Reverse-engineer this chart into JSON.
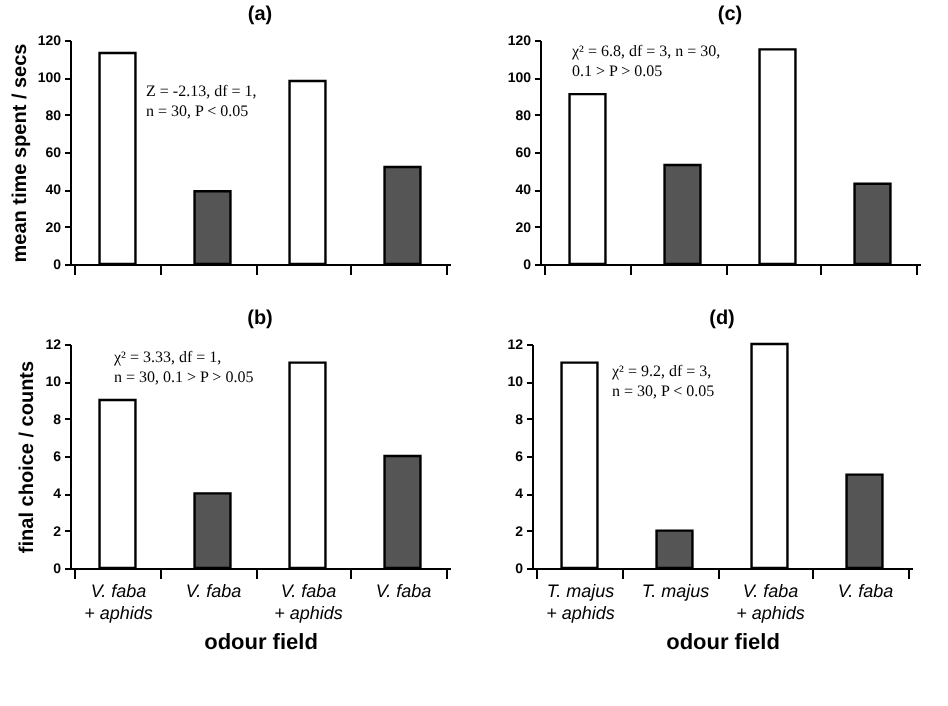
{
  "chart_data": [
    {
      "type": "bar",
      "title": "(a)",
      "ylabel": "mean time spent / secs",
      "categories": [
        null,
        null,
        null,
        null
      ],
      "values": [
        113,
        39,
        98,
        52
      ],
      "colors": [
        "#ffffff",
        "#555555",
        "#ffffff",
        "#555555"
      ],
      "ylim": [
        0,
        120
      ],
      "yticks": [
        0,
        20,
        40,
        60,
        80,
        100,
        120
      ],
      "grid": false,
      "annotations": [
        "Z = -2.13, df = 1,\nn = 30, P < 0.05"
      ]
    },
    {
      "type": "bar",
      "title": "(c)",
      "categories": [
        null,
        null,
        null,
        null
      ],
      "values": [
        91,
        53,
        115,
        43
      ],
      "colors": [
        "#ffffff",
        "#555555",
        "#ffffff",
        "#555555"
      ],
      "ylim": [
        0,
        120
      ],
      "yticks": [
        0,
        20,
        40,
        60,
        80,
        100,
        120
      ],
      "grid": false,
      "annotations": [
        "χ² = 6.8, df = 3, n = 30,\n0.1 > P > 0.05"
      ]
    },
    {
      "type": "bar",
      "title": "(b)",
      "ylabel": "final choice / counts",
      "xlabel": "odour field",
      "categories": [
        "V. faba\n+ aphids",
        "V. faba",
        "V. faba\n+ aphids",
        "V. faba"
      ],
      "values": [
        9,
        4,
        11,
        6
      ],
      "colors": [
        "#ffffff",
        "#555555",
        "#ffffff",
        "#555555"
      ],
      "ylim": [
        0,
        12
      ],
      "yticks": [
        0,
        2,
        4,
        6,
        8,
        10,
        12
      ],
      "grid": false,
      "annotations": [
        "χ² = 3.33, df = 1,\nn = 30,  0.1 > P > 0.05"
      ]
    },
    {
      "type": "bar",
      "title": "(d)",
      "xlabel": "odour field",
      "categories": [
        "T. majus\n+ aphids",
        "T. majus",
        "V. faba\n+ aphids",
        "V. faba"
      ],
      "values": [
        11,
        2,
        12,
        5
      ],
      "colors": [
        "#ffffff",
        "#555555",
        "#ffffff",
        "#555555"
      ],
      "ylim": [
        0,
        12
      ],
      "yticks": [
        0,
        2,
        4,
        6,
        8,
        10,
        12
      ],
      "grid": false,
      "annotations": [
        "χ² = 9.2, df = 3,\nn = 30,  P < 0.05"
      ]
    }
  ]
}
